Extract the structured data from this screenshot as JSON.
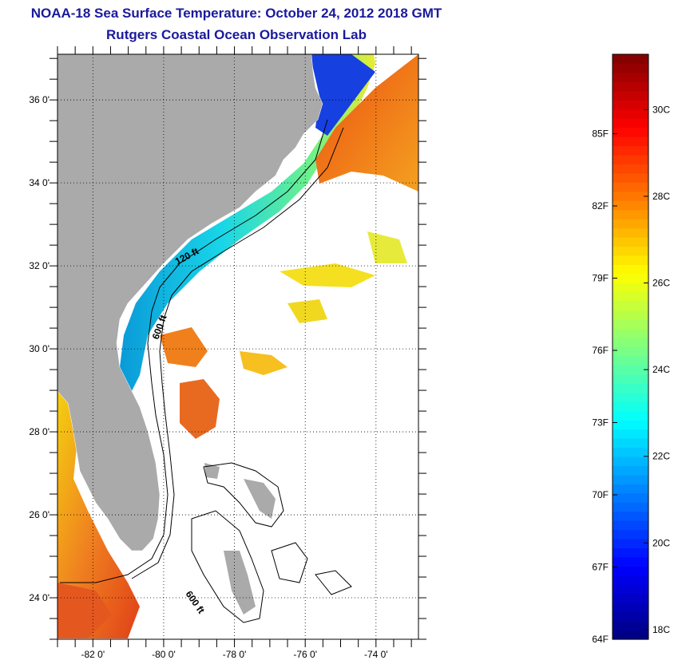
{
  "title": "NOAA-18 Sea Surface Temperature:  October 24, 2012 2018 GMT",
  "subtitle": "Rutgers Coastal Ocean Observation Lab",
  "map": {
    "lat_labels": [
      {
        "lat": 36,
        "label": "36 0'"
      },
      {
        "lat": 34,
        "label": "34 0'"
      },
      {
        "lat": 32,
        "label": "32 0'"
      },
      {
        "lat": 30,
        "label": "30 0'"
      },
      {
        "lat": 28,
        "label": "28 0'"
      },
      {
        "lat": 26,
        "label": "26 0'"
      },
      {
        "lat": 24,
        "label": "24 0'"
      }
    ],
    "lon_labels": [
      {
        "lon": -82,
        "label": "-82 0'"
      },
      {
        "lon": -80,
        "label": "-80 0'"
      },
      {
        "lon": -78,
        "label": "-78 0'"
      },
      {
        "lon": -76,
        "label": "-76 0'"
      },
      {
        "lon": -74,
        "label": "-74 0'"
      }
    ],
    "lat_range": [
      23,
      37.1
    ],
    "lon_range": [
      -83,
      -72.8
    ],
    "grid": "dotted",
    "contour_labels": [
      "120 ft",
      "600 ft",
      "600 ft"
    ],
    "land_color": "#aaaaaa"
  },
  "colorbar": {
    "f_labels": [
      "85F",
      "82F",
      "79F",
      "76F",
      "73F",
      "70F",
      "67F",
      "64F"
    ],
    "c_labels": [
      "30C",
      "28C",
      "26C",
      "24C",
      "22C",
      "20C",
      "18C"
    ],
    "colors": [
      "#00007f",
      "#0000ff",
      "#007fff",
      "#00ffff",
      "#7fff7f",
      "#ffff00",
      "#ff7f00",
      "#ff0000",
      "#7f0000"
    ]
  }
}
